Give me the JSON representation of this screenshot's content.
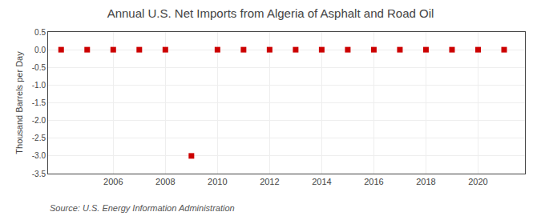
{
  "chart_data": {
    "type": "scatter",
    "title": "Annual U.S. Net Imports from Algeria of Asphalt and Road Oil",
    "y_label": "Thousand Barrels per Day",
    "annotations": [
      "Source: U.S. Energy Information Administration"
    ],
    "x": [
      2004,
      2005,
      2006,
      2007,
      2008,
      2009,
      2010,
      2011,
      2012,
      2013,
      2014,
      2015,
      2016,
      2017,
      2018,
      2019,
      2020,
      2021
    ],
    "values": [
      0,
      0,
      0,
      0,
      0,
      -3.0,
      0,
      0,
      0,
      0,
      0,
      0,
      0,
      0,
      0,
      0,
      0,
      0
    ],
    "color": "#cc0000",
    "marker": "square",
    "xlim": [
      2003.5,
      2021.8
    ],
    "xticks": [
      2006,
      2008,
      2010,
      2012,
      2014,
      2016,
      2018,
      2020
    ],
    "ylim": [
      -3.5,
      0.5
    ],
    "yticks": [
      0.5,
      {
        "value": 0.0,
        "label": "0.0"
      },
      -0.5,
      {
        "value": -1.0,
        "label": "-1.0"
      },
      -1.5,
      {
        "value": -2.0,
        "label": "-2.0"
      },
      -2.5,
      {
        "value": -3.0,
        "label": "-3.0"
      },
      -3.5
    ],
    "grid": true
  }
}
